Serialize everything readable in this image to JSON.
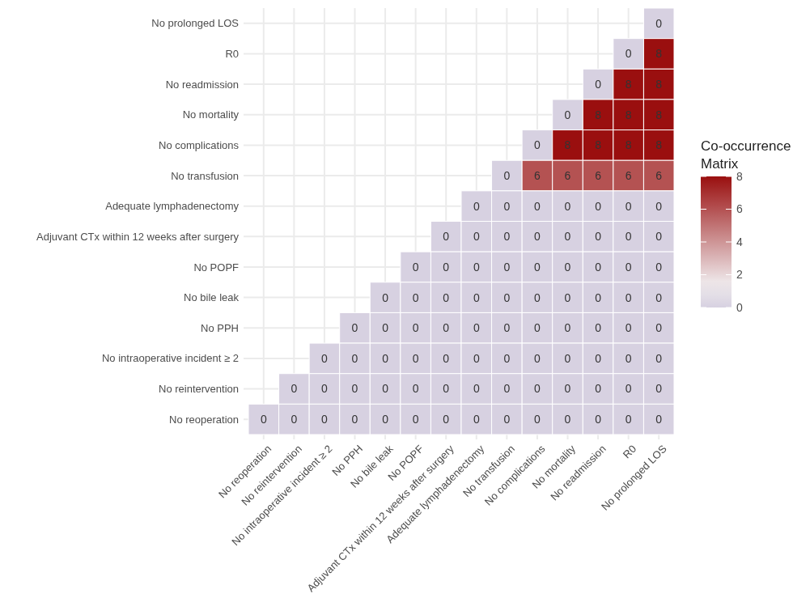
{
  "chart_data": {
    "type": "heatmap",
    "legend_title": "Co-occurrence\nMatrix",
    "categories": [
      "No reoperation",
      "No reintervention",
      "No intraoperative incident ≥ 2",
      "No PPH",
      "No bile leak",
      "No POPF",
      "Adjuvant CTx within 12 weeks after surgery",
      "Adequate lymphadenectomy",
      "No transfusion",
      "No complications",
      "No mortality",
      "No readmission",
      "R0",
      "No prolonged LOS"
    ],
    "y_categories": [
      "No prolonged LOS",
      "R0",
      "No readmission",
      "No mortality",
      "No complications",
      "No transfusion",
      "Adequate lymphadenectomy",
      "Adjuvant CTx within 12 weeks after surgery",
      "No POPF",
      "No bile leak",
      "No PPH",
      "No intraoperative incident ≥ 2",
      "No reintervention",
      "No reoperation"
    ],
    "cells": [
      [
        null,
        null,
        null,
        null,
        null,
        null,
        null,
        null,
        null,
        null,
        null,
        null,
        null,
        0
      ],
      [
        null,
        null,
        null,
        null,
        null,
        null,
        null,
        null,
        null,
        null,
        null,
        null,
        0,
        8
      ],
      [
        null,
        null,
        null,
        null,
        null,
        null,
        null,
        null,
        null,
        null,
        null,
        0,
        8,
        8
      ],
      [
        null,
        null,
        null,
        null,
        null,
        null,
        null,
        null,
        null,
        null,
        0,
        8,
        8,
        8
      ],
      [
        null,
        null,
        null,
        null,
        null,
        null,
        null,
        null,
        null,
        0,
        8,
        8,
        8,
        8
      ],
      [
        null,
        null,
        null,
        null,
        null,
        null,
        null,
        null,
        0,
        6,
        6,
        6,
        6,
        6
      ],
      [
        null,
        null,
        null,
        null,
        null,
        null,
        null,
        0,
        0,
        0,
        0,
        0,
        0,
        0
      ],
      [
        null,
        null,
        null,
        null,
        null,
        null,
        0,
        0,
        0,
        0,
        0,
        0,
        0,
        0
      ],
      [
        null,
        null,
        null,
        null,
        null,
        0,
        0,
        0,
        0,
        0,
        0,
        0,
        0,
        0
      ],
      [
        null,
        null,
        null,
        null,
        0,
        0,
        0,
        0,
        0,
        0,
        0,
        0,
        0,
        0
      ],
      [
        null,
        null,
        null,
        0,
        0,
        0,
        0,
        0,
        0,
        0,
        0,
        0,
        0,
        0
      ],
      [
        null,
        null,
        0,
        0,
        0,
        0,
        0,
        0,
        0,
        0,
        0,
        0,
        0,
        0
      ],
      [
        null,
        0,
        0,
        0,
        0,
        0,
        0,
        0,
        0,
        0,
        0,
        0,
        0,
        0
      ],
      [
        0,
        0,
        0,
        0,
        0,
        0,
        0,
        0,
        0,
        0,
        0,
        0,
        0,
        0
      ]
    ],
    "clim": [
      0,
      8
    ],
    "cticks": [
      0,
      2,
      4,
      6,
      8
    ],
    "data_labels": true,
    "grid": true
  }
}
